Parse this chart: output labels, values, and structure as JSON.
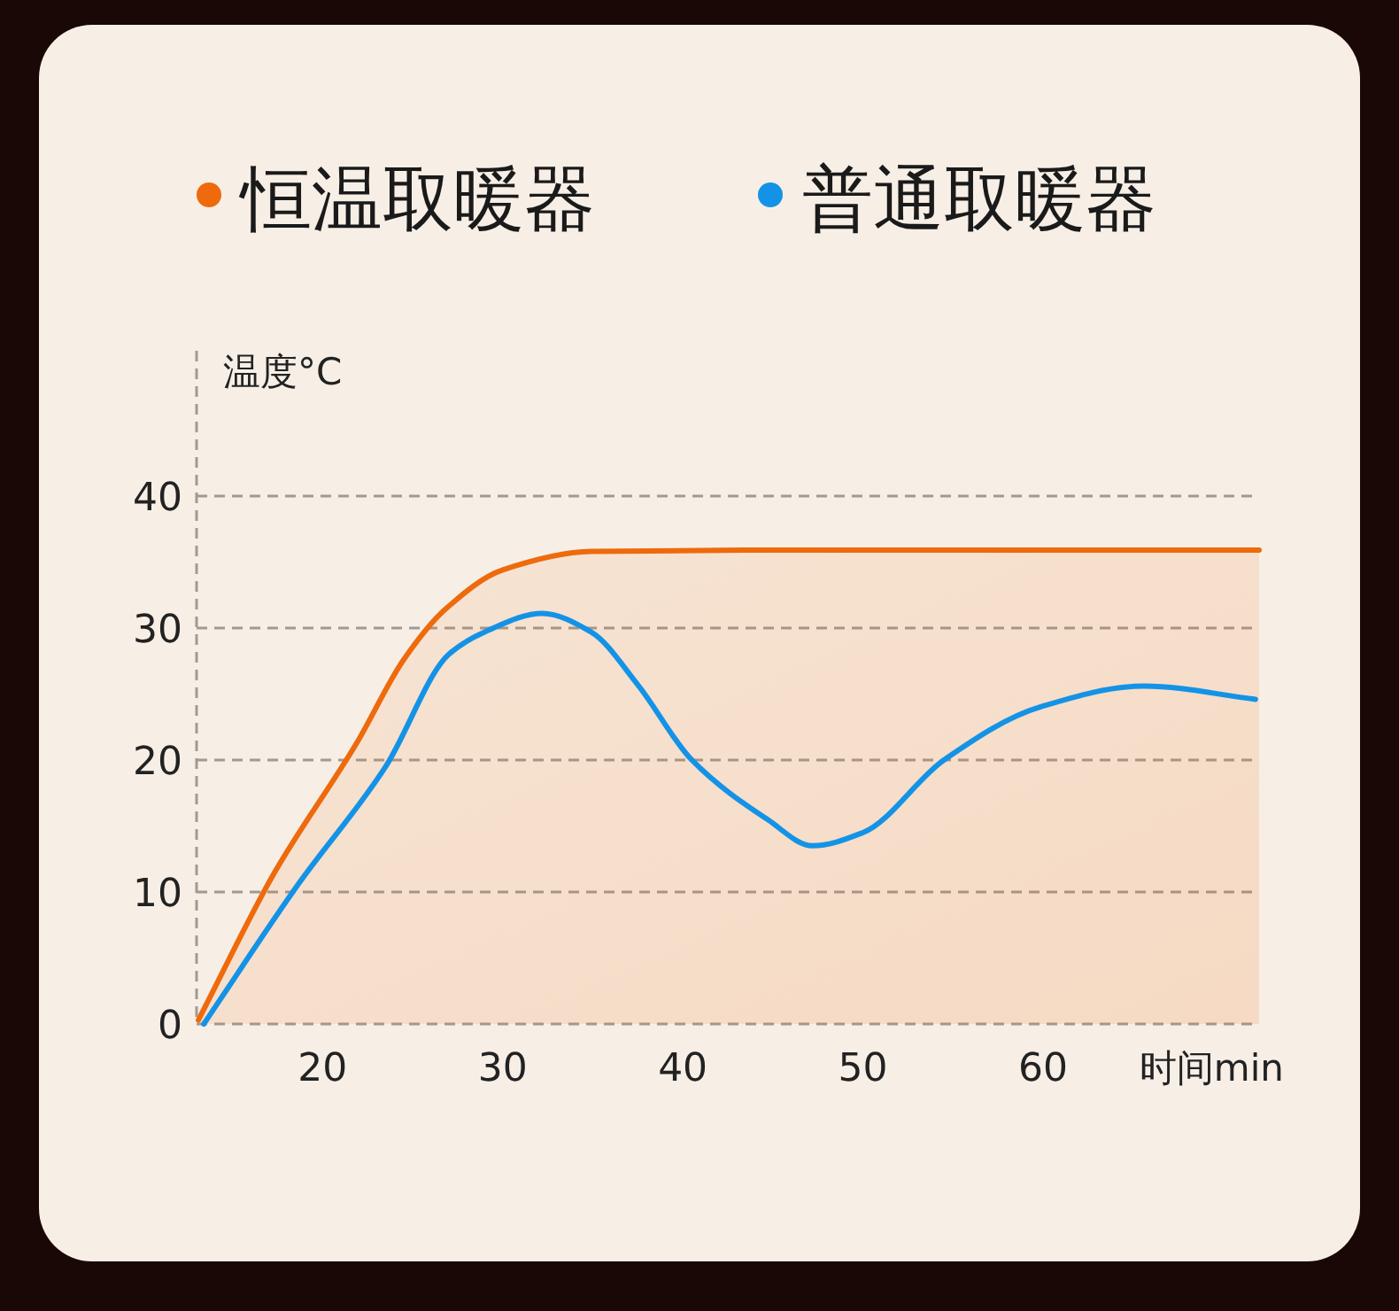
{
  "chart_data": {
    "type": "line",
    "xlabel": "时间min",
    "ylabel": "温度°C",
    "xlim": [
      13,
      72
    ],
    "xticks": [
      20,
      30,
      40,
      50,
      60
    ],
    "ylim": [
      0,
      51
    ],
    "yticks": [
      0,
      10,
      20,
      30,
      40
    ],
    "grid": "y",
    "legend": "top",
    "line_style": "solid",
    "marker": "none",
    "series": [
      {
        "name": "恒温取暖器",
        "type": "area",
        "color": "#ee6a0c",
        "x": [
          13.1,
          17.3,
          21.9,
          24.5,
          26.8,
          30,
          34.9,
          43.4,
          72
        ],
        "values": [
          0.3,
          11.4,
          21.3,
          27.6,
          31.4,
          34.4,
          35.8,
          35.9,
          35.9
        ]
      },
      {
        "name": "普通取暖器",
        "color": "#1493e6",
        "x": [
          13.4,
          18.6,
          23.5,
          27,
          29,
          32.2,
          34.9,
          37.5,
          40.5,
          44.7,
          47.2,
          50,
          54.5,
          59.8,
          65.6,
          71.8
        ],
        "values": [
          0,
          10.5,
          19.5,
          28,
          29.7,
          31.1,
          29.7,
          25.7,
          20,
          15.5,
          13.5,
          14.5,
          20,
          24,
          25.6,
          24.6
        ]
      }
    ]
  }
}
